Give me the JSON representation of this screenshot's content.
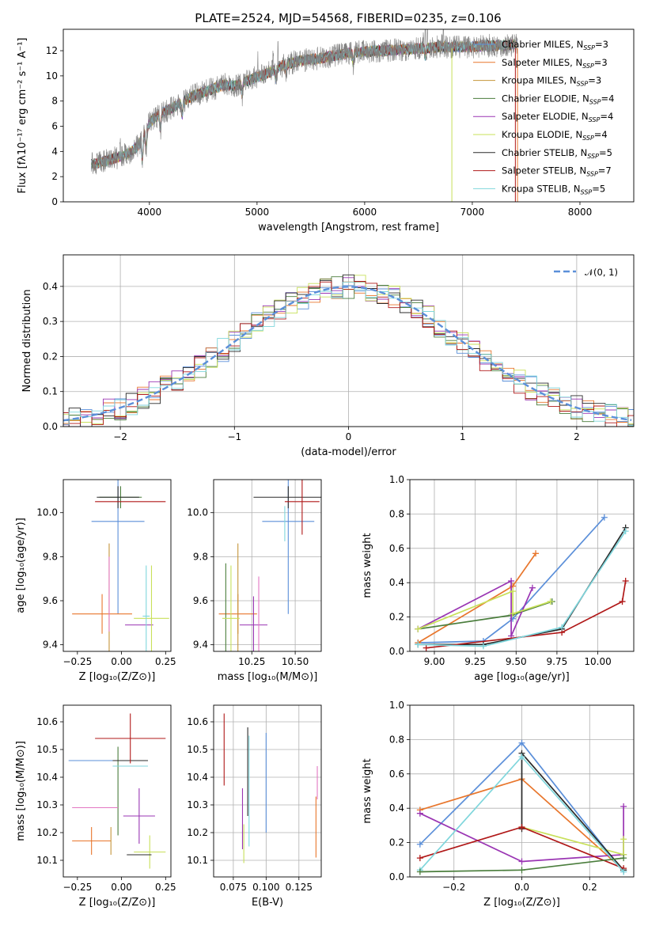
{
  "title": "PLATE=2524, MJD=54568, FIBERID=0235, z=0.106",
  "colors": {
    "Chabrier MILES": "#5b8fd9",
    "Salpeter MILES": "#e8762c",
    "Kroupa MILES": "#c5953a",
    "Chabrier ELODIE": "#4a7d3c",
    "Salpeter ELODIE": "#9a35b3",
    "Kroupa ELODIE": "#c8e05a",
    "Chabrier STELIB": "#2b2b2b",
    "Salpeter STELIB": "#b01818",
    "Kroupa STELIB": "#7fd6dc",
    "data": "#808080",
    "pink": "#e377c2"
  },
  "chart_data": [
    {
      "type": "line",
      "id": "spectrum",
      "xlabel": "wavelength [Angstrom, rest frame]",
      "ylabel": "Flux [fλ10⁻¹⁷ erg cm⁻² s⁻¹ A⁻¹]",
      "xlim": [
        3200,
        8500
      ],
      "ylim": [
        0,
        13.7
      ],
      "xticks": [
        4000,
        5000,
        6000,
        7000,
        8000
      ],
      "yticks": [
        0,
        2,
        4,
        6,
        8,
        10,
        12
      ],
      "legend": "top-right",
      "legend_entries": [
        {
          "label": "Chabrier MILES, N",
          "sub": "SSP",
          "tail": "=3",
          "color_key": "Chabrier MILES"
        },
        {
          "label": "Salpeter MILES, N",
          "sub": "SSP",
          "tail": "=3",
          "color_key": "Salpeter MILES"
        },
        {
          "label": "Kroupa MILES, N",
          "sub": "SSP",
          "tail": "=3",
          "color_key": "Kroupa MILES"
        },
        {
          "label": "Chabrier ELODIE, N",
          "sub": "SSP",
          "tail": "=4",
          "color_key": "Chabrier ELODIE"
        },
        {
          "label": "Salpeter ELODIE, N",
          "sub": "SSP",
          "tail": "=4",
          "color_key": "Salpeter ELODIE"
        },
        {
          "label": "Kroupa ELODIE, N",
          "sub": "SSP",
          "tail": "=4",
          "color_key": "Kroupa ELODIE"
        },
        {
          "label": "Chabrier STELIB, N",
          "sub": "SSP",
          "tail": "=5",
          "color_key": "Chabrier STELIB"
        },
        {
          "label": "Salpeter STELIB, N",
          "sub": "SSP",
          "tail": "=7",
          "color_key": "Salpeter STELIB"
        },
        {
          "label": "Kroupa STELIB, N",
          "sub": "SSP",
          "tail": "=5",
          "color_key": "Kroupa STELIB"
        }
      ],
      "continuum": [
        [
          3500,
          3.0
        ],
        [
          3650,
          3.4
        ],
        [
          3800,
          3.8
        ],
        [
          3900,
          4.5
        ],
        [
          4000,
          6.3
        ],
        [
          4100,
          7.0
        ],
        [
          4200,
          7.4
        ],
        [
          4300,
          7.9
        ],
        [
          4400,
          8.4
        ],
        [
          4500,
          8.7
        ],
        [
          4600,
          9.0
        ],
        [
          4700,
          9.3
        ],
        [
          4800,
          9.2
        ],
        [
          4900,
          9.6
        ],
        [
          5000,
          9.9
        ],
        [
          5100,
          10.2
        ],
        [
          5200,
          10.7
        ],
        [
          5300,
          11.0
        ],
        [
          5400,
          11.2
        ],
        [
          5500,
          11.3
        ],
        [
          5600,
          11.4
        ],
        [
          5700,
          11.6
        ],
        [
          5800,
          11.7
        ],
        [
          5900,
          11.9
        ],
        [
          6000,
          11.9
        ],
        [
          6100,
          12.0
        ],
        [
          6200,
          12.0
        ],
        [
          6300,
          12.1
        ],
        [
          6400,
          12.1
        ],
        [
          6500,
          12.2
        ],
        [
          6600,
          12.2
        ],
        [
          6700,
          12.3
        ],
        [
          6800,
          12.3
        ],
        [
          6900,
          12.3
        ],
        [
          7000,
          12.3
        ],
        [
          7100,
          12.4
        ],
        [
          7200,
          12.4
        ],
        [
          7300,
          12.4
        ],
        [
          7400,
          12.5
        ]
      ],
      "data_range": [
        3460,
        7420
      ],
      "absorption_features": [
        [
          3934,
          1.8
        ],
        [
          3969,
          1.6
        ],
        [
          4102,
          1.2
        ],
        [
          4304,
          1.0
        ],
        [
          4861,
          0.9
        ],
        [
          5175,
          0.8
        ],
        [
          5270,
          0.6
        ],
        [
          5893,
          0.8
        ],
        [
          6563,
          0.6
        ]
      ],
      "emission_spikes": [
        [
          3727,
          2.0
        ],
        [
          5007,
          2.5
        ],
        [
          5150,
          2.0
        ],
        [
          5195,
          3.0
        ],
        [
          6548,
          1.2
        ],
        [
          6563,
          2.5
        ],
        [
          6583,
          2.0
        ],
        [
          6716,
          1.5
        ],
        [
          6731,
          1.5
        ]
      ]
    },
    {
      "type": "histogram",
      "id": "residuals",
      "xlabel": "(data-model)/error",
      "ylabel": "Normed distribution",
      "xlim": [
        -2.5,
        2.5
      ],
      "ylim": [
        0,
        0.49
      ],
      "xticks": [
        -2,
        -1,
        0,
        1,
        2
      ],
      "yticks": [
        0.0,
        0.1,
        0.2,
        0.3,
        0.4
      ],
      "grid": true,
      "legend": "top-right",
      "legend_label": "𝒩(0, 1)",
      "normal_curve": {
        "mu": 0,
        "sigma": 1,
        "color": "#5b8fd9"
      },
      "bin_width": 0.1,
      "bin_start": -2.55
    },
    {
      "type": "scatter",
      "id": "age-vs-Z",
      "xlabel": "Z [log₁₀(Z/Z⊙)]",
      "ylabel": "age  [log₁₀(age/yr)]",
      "xlim": [
        -0.33,
        0.28
      ],
      "ylim": [
        9.37,
        10.15
      ],
      "xticks": [
        -0.25,
        0.0,
        0.25
      ],
      "yticks": [
        9.4,
        9.6,
        9.8,
        10.0
      ],
      "grid": false,
      "points": [
        {
          "c": "Chabrier MILES",
          "x": -0.02,
          "y": 9.96,
          "xe": 0.15,
          "ye": 0.42
        },
        {
          "c": "Salpeter MILES",
          "x": -0.11,
          "y": 9.54,
          "xe": 0.17,
          "ye": 0.09
        },
        {
          "c": "Kroupa MILES",
          "x": -0.07,
          "y": 9.54,
          "xe": 0.0,
          "ye": 0.32
        },
        {
          "c": "Chabrier ELODIE",
          "x": -0.005,
          "y": 10.07,
          "xe": 0.12,
          "ye": 0.05
        },
        {
          "c": "Salpeter ELODIE",
          "x": 0.1,
          "y": 9.49,
          "xe": 0.08,
          "ye": 0.0
        },
        {
          "c": "Kroupa ELODIE",
          "x": 0.17,
          "y": 9.52,
          "xe": 0.1,
          "ye": 0.24
        },
        {
          "c": "Chabrier STELIB",
          "x": -0.02,
          "y": 10.07,
          "xe": 0.12,
          "ye": 0.05
        },
        {
          "c": "Salpeter STELIB",
          "x": 0.05,
          "y": 10.05,
          "xe": 0.2,
          "ye": 0.0
        },
        {
          "c": "Kroupa STELIB",
          "x": 0.14,
          "y": 9.53,
          "xe": 0.02,
          "ye": 0.23
        },
        {
          "c": "pink",
          "x": -0.07,
          "y": 9.63,
          "xe": 0.0,
          "ye": 0.17
        }
      ]
    },
    {
      "type": "scatter",
      "id": "age-vs-mass",
      "xlabel": "mass [log₁₀(M/M⊙)]",
      "ylabel": "",
      "xlim": [
        10.03,
        10.65
      ],
      "ylim": [
        9.37,
        10.15
      ],
      "xticks": [
        10.25,
        10.5
      ],
      "yticks": [
        9.4,
        9.6,
        9.8,
        10.0
      ],
      "grid": true,
      "points": [
        {
          "c": "Chabrier MILES",
          "x": 10.46,
          "y": 9.96,
          "xe": 0.15,
          "ye": 0.42
        },
        {
          "c": "Salpeter MILES",
          "x": 10.17,
          "y": 9.54,
          "xe": 0.11,
          "ye": 0.09
        },
        {
          "c": "Kroupa MILES",
          "x": 10.17,
          "y": 9.54,
          "xe": 0.0,
          "ye": 0.32
        },
        {
          "c": "Chabrier ELODIE",
          "x": 10.1,
          "y": 9.54,
          "xe": 0.0,
          "ye": 0.23
        },
        {
          "c": "Salpeter ELODIE",
          "x": 10.26,
          "y": 9.49,
          "xe": 0.08,
          "ye": 0.13
        },
        {
          "c": "Kroupa ELODIE",
          "x": 10.13,
          "y": 9.52,
          "xe": 0.05,
          "ye": 0.24
        },
        {
          "c": "Chabrier STELIB",
          "x": 10.46,
          "y": 10.07,
          "xe": 0.2,
          "ye": 0.05
        },
        {
          "c": "Salpeter STELIB",
          "x": 10.54,
          "y": 10.05,
          "xe": 0.1,
          "ye": 0.15
        },
        {
          "c": "Kroupa STELIB",
          "x": 10.44,
          "y": 9.95,
          "xe": 0.0,
          "ye": 0.08
        },
        {
          "c": "pink",
          "x": 10.29,
          "y": 9.54,
          "xe": 0.0,
          "ye": 0.17
        }
      ]
    },
    {
      "type": "line",
      "id": "mass-weight-vs-age",
      "xlabel": "age  [log₁₀(age/yr)]",
      "ylabel": "mass weight",
      "xlim": [
        8.85,
        10.22
      ],
      "ylim": [
        0,
        1.0
      ],
      "xticks": [
        9.0,
        9.25,
        9.5,
        9.75,
        10.0
      ],
      "yticks": [
        0.0,
        0.2,
        0.4,
        0.6,
        0.8,
        1.0
      ],
      "grid": true,
      "series": [
        {
          "c": "Chabrier MILES",
          "x": [
            8.9,
            9.3,
            9.48,
            10.04
          ],
          "y": [
            0.05,
            0.06,
            0.19,
            0.78
          ]
        },
        {
          "c": "Salpeter MILES",
          "x": [
            8.9,
            9.48,
            9.62
          ],
          "y": [
            0.05,
            0.38,
            0.57
          ]
        },
        {
          "c": "Chabrier ELODIE",
          "x": [
            8.9,
            9.47,
            9.72
          ],
          "y": [
            0.13,
            0.21,
            0.29
          ]
        },
        {
          "c": "Salpeter ELODIE",
          "x": [
            8.9,
            9.47,
            9.47,
            9.6
          ],
          "y": [
            0.13,
            0.41,
            0.09,
            0.37
          ]
        },
        {
          "c": "Kroupa ELODIE",
          "x": [
            8.9,
            9.48,
            9.48,
            9.71
          ],
          "y": [
            0.13,
            0.35,
            0.22,
            0.29
          ]
        },
        {
          "c": "Chabrier STELIB",
          "x": [
            8.9,
            9.3,
            9.78,
            10.17
          ],
          "y": [
            0.04,
            0.04,
            0.13,
            0.72
          ]
        },
        {
          "c": "Salpeter STELIB",
          "x": [
            8.95,
            9.78,
            10.15,
            10.17
          ],
          "y": [
            0.02,
            0.11,
            0.29,
            0.41
          ]
        },
        {
          "c": "Kroupa STELIB",
          "x": [
            8.9,
            9.3,
            9.78,
            10.17
          ],
          "y": [
            0.04,
            0.03,
            0.14,
            0.7
          ]
        }
      ]
    },
    {
      "type": "scatter",
      "id": "mass-vs-Z",
      "xlabel": "Z [log₁₀(Z/Z⊙)]",
      "ylabel": "mass [log₁₀(M/M⊙)]",
      "xlim": [
        -0.33,
        0.28
      ],
      "ylim": [
        10.04,
        10.66
      ],
      "xticks": [
        -0.25,
        0.0,
        0.25
      ],
      "yticks": [
        10.1,
        10.2,
        10.3,
        10.4,
        10.5,
        10.6
      ],
      "grid": false,
      "points": [
        {
          "c": "Chabrier MILES",
          "x": -0.13,
          "y": 10.46,
          "xe": 0.17,
          "ye": 0.0
        },
        {
          "c": "Salpeter MILES",
          "x": -0.17,
          "y": 10.17,
          "xe": 0.11,
          "ye": 0.05
        },
        {
          "c": "Chabrier ELODIE",
          "x": -0.02,
          "y": 10.35,
          "xe": 0.0,
          "ye": 0.16
        },
        {
          "c": "Salpeter ELODIE",
          "x": 0.1,
          "y": 10.26,
          "xe": 0.09,
          "ye": 0.1
        },
        {
          "c": "Kroupa ELODIE",
          "x": 0.16,
          "y": 10.13,
          "xe": 0.09,
          "ye": 0.06
        },
        {
          "c": "Chabrier STELIB",
          "x": 0.05,
          "y": 10.46,
          "xe": 0.1,
          "ye": 0.0
        },
        {
          "c": "Salpeter STELIB",
          "x": 0.05,
          "y": 10.54,
          "xe": 0.2,
          "ye": 0.09
        },
        {
          "c": "Kroupa STELIB",
          "x": 0.05,
          "y": 10.44,
          "xe": 0.1,
          "ye": 0.0
        },
        {
          "c": "pink",
          "x": -0.15,
          "y": 10.29,
          "xe": 0.13,
          "ye": 0.0
        },
        {
          "c": "Chabrier STELIB",
          "x": 0.1,
          "y": 10.12,
          "xe": 0.07,
          "ye": 0.0
        },
        {
          "c": "Kroupa MILES",
          "x": -0.06,
          "y": 10.17,
          "xe": 0.0,
          "ye": 0.05
        }
      ]
    },
    {
      "type": "scatter",
      "id": "mass-vs-EBV",
      "xlabel": "E(B-V)",
      "ylabel": "",
      "xlim": [
        0.06,
        0.142
      ],
      "ylim": [
        10.04,
        10.66
      ],
      "xticks": [
        0.075,
        0.1,
        0.125
      ],
      "xticklabels": [
        "0.075",
        "0.100",
        "0.125"
      ],
      "yticks": [
        10.1,
        10.2,
        10.3,
        10.4,
        10.5,
        10.6
      ],
      "grid": true,
      "points": [
        {
          "c": "Salpeter STELIB",
          "x": 0.068,
          "y": 10.5,
          "xe": 0.0,
          "ye": 0.13
        },
        {
          "c": "Salpeter ELODIE",
          "x": 0.082,
          "y": 10.25,
          "xe": 0.0,
          "ye": 0.11
        },
        {
          "c": "Kroupa ELODIE",
          "x": 0.083,
          "y": 10.16,
          "xe": 0.0,
          "ye": 0.07
        },
        {
          "c": "Chabrier STELIB",
          "x": 0.086,
          "y": 10.42,
          "xe": 0.0,
          "ye": 0.16
        },
        {
          "c": "Kroupa STELIB",
          "x": 0.087,
          "y": 10.35,
          "xe": 0.0,
          "ye": 0.2
        },
        {
          "c": "Chabrier MILES",
          "x": 0.1,
          "y": 10.38,
          "xe": 0.0,
          "ye": 0.18
        },
        {
          "c": "Salpeter MILES",
          "x": 0.138,
          "y": 10.22,
          "xe": 0.0,
          "ye": 0.11
        },
        {
          "c": "pink",
          "x": 0.139,
          "y": 10.38,
          "xe": 0.0,
          "ye": 0.06
        }
      ]
    },
    {
      "type": "line",
      "id": "mass-weight-vs-Z",
      "xlabel": "Z [log₁₀(Z/Z⊙)]",
      "ylabel": "mass weight",
      "xlim": [
        -0.33,
        0.33
      ],
      "ylim": [
        0,
        1.0
      ],
      "xticks": [
        -0.2,
        0.0,
        0.2
      ],
      "yticks": [
        0.0,
        0.2,
        0.4,
        0.6,
        0.8,
        1.0
      ],
      "grid": true,
      "series": [
        {
          "c": "Chabrier MILES",
          "x": [
            -0.3,
            0.0,
            0.3
          ],
          "y": [
            0.19,
            0.78,
            0.03
          ]
        },
        {
          "c": "Salpeter MILES",
          "x": [
            -0.3,
            0.0,
            0.3
          ],
          "y": [
            0.39,
            0.57,
            0.04
          ]
        },
        {
          "c": "Salpeter ELODIE",
          "x": [
            -0.3,
            0.0,
            0.3,
            0.3
          ],
          "y": [
            0.37,
            0.09,
            0.13,
            0.41
          ]
        },
        {
          "c": "Kroupa ELODIE",
          "x": [
            0.0,
            0.3,
            0.3
          ],
          "y": [
            0.29,
            0.13,
            0.22
          ]
        },
        {
          "c": "Chabrier STELIB",
          "x": [
            0.0,
            0.0,
            0.3
          ],
          "y": [
            0.28,
            0.72,
            0.04
          ]
        },
        {
          "c": "Salpeter STELIB",
          "x": [
            -0.3,
            0.0,
            0.3
          ],
          "y": [
            0.11,
            0.29,
            0.05
          ]
        },
        {
          "c": "Kroupa STELIB",
          "x": [
            -0.3,
            0.0,
            0.3
          ],
          "y": [
            0.04,
            0.7,
            0.03
          ]
        },
        {
          "c": "Chabrier ELODIE",
          "x": [
            -0.3,
            0.0,
            0.3
          ],
          "y": [
            0.03,
            0.04,
            0.11
          ]
        }
      ]
    }
  ]
}
